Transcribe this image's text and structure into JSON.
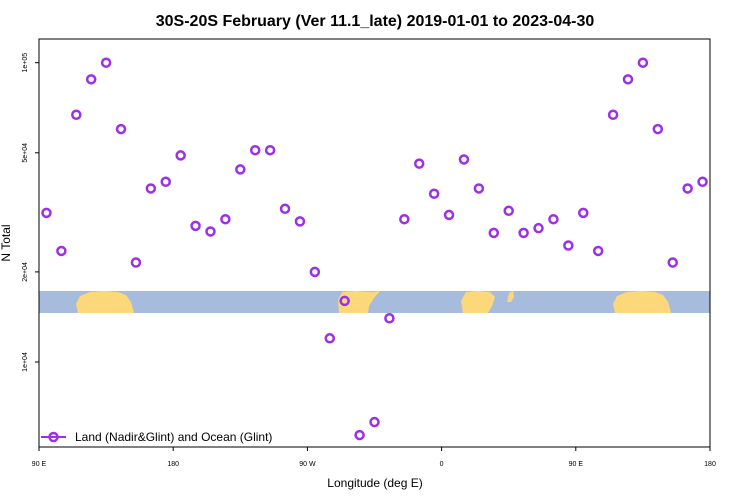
{
  "chart_data": {
    "type": "scatter",
    "title": "30S-20S February (Ver 11.1_late)   2019-01-01 to 2023-04-30",
    "xlabel": "Longitude (deg E)",
    "ylabel": "N Total",
    "y_scale": "log",
    "xlim": [
      90,
      540
    ],
    "ylim": [
      5200,
      120000
    ],
    "x_ticks": [
      {
        "value": 90,
        "label": "90 E"
      },
      {
        "value": 180,
        "label": "180"
      },
      {
        "value": 270,
        "label": "90 W"
      },
      {
        "value": 360,
        "label": "0"
      },
      {
        "value": 450,
        "label": "90 E"
      },
      {
        "value": 540,
        "label": "180"
      }
    ],
    "y_ticks": [
      {
        "value": 10000,
        "label": "1e+04"
      },
      {
        "value": 20000,
        "label": "2e+04"
      },
      {
        "value": 50000,
        "label": "5e+04"
      },
      {
        "value": 100000,
        "label": "1e+05"
      }
    ],
    "grid": false,
    "legend_position": "bottom-left",
    "series": [
      {
        "name": "Land (Nadir&Glint) and Ocean (Glint)",
        "color": "#9b30e8",
        "marker": "open-circle",
        "x": [
          95,
          105,
          115,
          125,
          135,
          145,
          155,
          165,
          175,
          185,
          195,
          205,
          215,
          225,
          235,
          245,
          255,
          265,
          275,
          285,
          295,
          305,
          315,
          325,
          335,
          345,
          355,
          365,
          375,
          385,
          395,
          405,
          415,
          425,
          435,
          445,
          455,
          465,
          475,
          485,
          495,
          505,
          515,
          525,
          535
        ],
        "y": [
          31500,
          23500,
          67000,
          88000,
          100000,
          60000,
          21500,
          38000,
          40000,
          49000,
          28500,
          27300,
          30000,
          44000,
          51000,
          51000,
          32500,
          29500,
          20000,
          12000,
          16000,
          5700,
          6300,
          14000,
          30000,
          46000,
          36500,
          31000,
          47500,
          38000,
          27000,
          32000,
          27000,
          28000,
          30000,
          24500,
          31500,
          23500,
          67000,
          88000,
          100000,
          60000,
          21500,
          38000,
          40000
        ]
      }
    ]
  }
}
